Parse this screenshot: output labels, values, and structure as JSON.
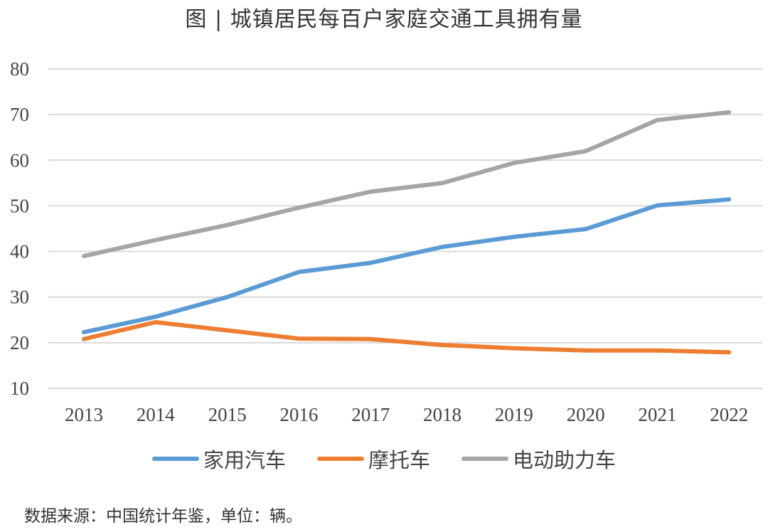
{
  "chart_data": {
    "type": "line",
    "title": "图 | 城镇居民每百户家庭交通工具拥有量",
    "xlabel": "",
    "ylabel": "",
    "categories": [
      "2013",
      "2014",
      "2015",
      "2016",
      "2017",
      "2018",
      "2019",
      "2020",
      "2021",
      "2022"
    ],
    "ylim": [
      10,
      80
    ],
    "yticks": [
      "10",
      "20",
      "30",
      "40",
      "50",
      "60",
      "70",
      "80"
    ],
    "grid": true,
    "legend_position": "bottom",
    "series": [
      {
        "name": "家用汽车",
        "color": "#5b9bd5",
        "values": [
          22.3,
          25.7,
          30.0,
          35.5,
          37.5,
          41.0,
          43.2,
          44.9,
          50.1,
          51.4
        ]
      },
      {
        "name": "摩托车",
        "color": "#ed7d31",
        "values": [
          20.8,
          24.5,
          22.7,
          20.9,
          20.8,
          19.5,
          18.8,
          18.3,
          18.3,
          17.9
        ]
      },
      {
        "name": "电动助力车",
        "color": "#a5a5a5",
        "values": [
          39.0,
          42.5,
          45.8,
          49.6,
          53.1,
          55.0,
          59.4,
          62.0,
          68.8,
          70.5
        ]
      }
    ]
  },
  "source_note": "数据来源：中国统计年鉴，单位：辆。"
}
